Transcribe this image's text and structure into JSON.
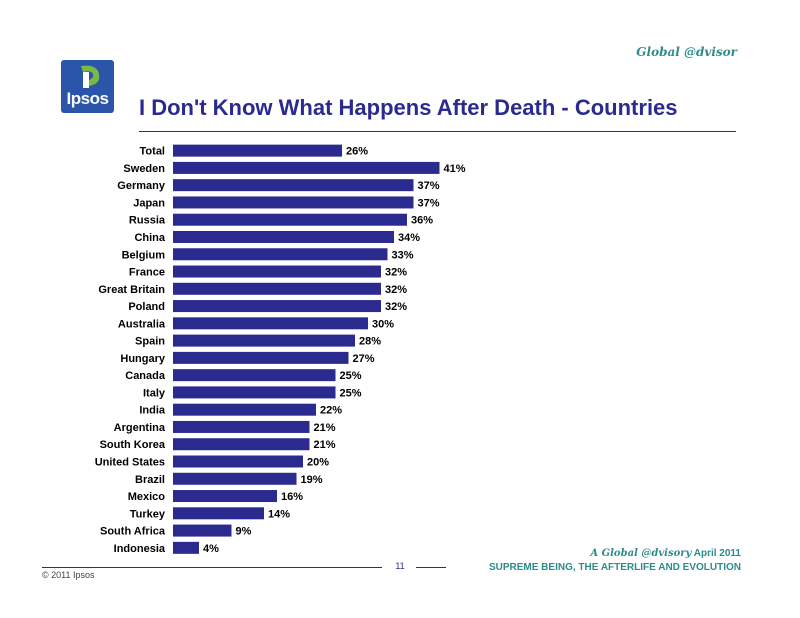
{
  "header": {
    "brand": "Global @dvisor",
    "logo_text": "Ipsos",
    "title": "I Don't Know What Happens After Death - Countries"
  },
  "footer": {
    "copyright": "© 2011 Ipsos",
    "page_number": "11",
    "report_series": "A Global @dvisory",
    "report_date": " April 2011",
    "report_subtitle": "SUPREME BEING, THE AFTERLIFE AND EVOLUTION"
  },
  "colors": {
    "bar": "#2b2b8f",
    "accent": "#2e8b8b",
    "logo_blue": "#2a55a8"
  },
  "chart_data": {
    "type": "bar",
    "orientation": "horizontal",
    "title": "I Don't Know What Happens After Death - Countries",
    "categories": [
      "Total",
      "Sweden",
      "Germany",
      "Japan",
      "Russia",
      "China",
      "Belgium",
      "France",
      "Great Britain",
      "Poland",
      "Australia",
      "Spain",
      "Hungary",
      "Canada",
      "Italy",
      "India",
      "Argentina",
      "South Korea",
      "United States",
      "Brazil",
      "Mexico",
      "Turkey",
      "South Africa",
      "Indonesia"
    ],
    "values": [
      26,
      41,
      37,
      37,
      36,
      34,
      33,
      32,
      32,
      32,
      30,
      28,
      27,
      25,
      25,
      22,
      21,
      21,
      20,
      19,
      16,
      14,
      9,
      4
    ],
    "value_suffix": "%",
    "xlim": [
      0,
      100
    ],
    "grid": false,
    "legend": "none"
  }
}
